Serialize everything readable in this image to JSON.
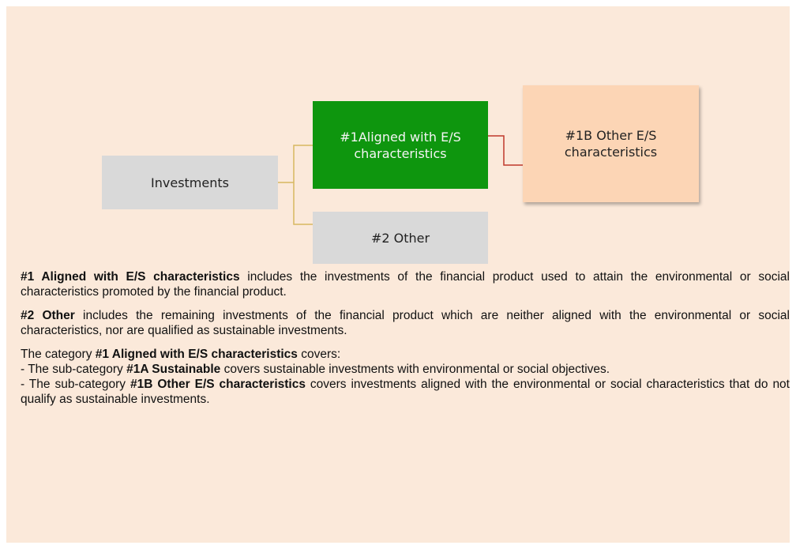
{
  "nodes": [
    {
      "label": "Investments"
    },
    {
      "label": "#1Aligned with E/S characteristics"
    },
    {
      "label": "#1B Other E/S characteristics"
    },
    {
      "label": "#2 Other"
    }
  ],
  "paragraphs": [
    [
      "#1 Aligned with E/S characteristics",
      " includes the investments of the financial product used to attain the environmental or social characteristics promoted by the financial product."
    ],
    [
      "#2 Other",
      " includes the remaining investments of the financial product which are neither aligned with the environmental or social characteristics, nor are qualified as sustainable investments."
    ],
    [
      "The category ",
      "#1 Aligned with E/S characteristics",
      " covers:"
    ],
    [
      "- The sub-category ",
      "#1A Sustainable",
      " covers sustainable investments with environmental or social objectives."
    ],
    [
      "- The sub-category ",
      "#1B Other E/S characteristics",
      " covers investments aligned with the environmental or social characteristics that do not qualify as sustainable investments."
    ]
  ]
}
